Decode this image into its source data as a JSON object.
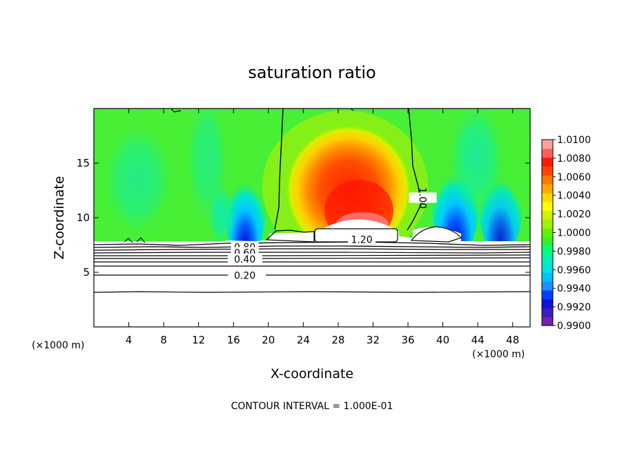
{
  "chart_data": {
    "type": "heatmap",
    "title": "saturation ratio",
    "xlabel": "X-coordinate",
    "ylabel": "Z-coordinate",
    "x_unit_left": "(×1000 m)",
    "x_unit_right": "(×1000 m)",
    "footer": "CONTOUR INTERVAL = 1.000E-01",
    "xlim": [
      0,
      50
    ],
    "ylim": [
      0,
      20
    ],
    "x_ticks": [
      4,
      8,
      12,
      16,
      20,
      24,
      28,
      32,
      36,
      40,
      44,
      48
    ],
    "y_ticks": [
      5,
      10,
      15
    ],
    "colorbar": {
      "min": 0.99,
      "max": 1.01,
      "step": 0.001,
      "labels": [
        "1.0100",
        "1.0080",
        "1.0060",
        "1.0040",
        "1.0020",
        "1.0000",
        "0.9980",
        "0.9960",
        "0.9940",
        "0.9920",
        "0.9900"
      ],
      "colors": [
        "#7a1fa8",
        "#3a1fc0",
        "#1010d8",
        "#0040ff",
        "#1e90ff",
        "#00bfff",
        "#00e0e0",
        "#00f0b0",
        "#00ff80",
        "#30f030",
        "#60f000",
        "#a0f000",
        "#d0f000",
        "#ffff00",
        "#ffd800",
        "#ffa800",
        "#ff7800",
        "#ff4500",
        "#ff1a00",
        "#ff6060",
        "#ffa0a0"
      ]
    },
    "contour_labels": [
      {
        "text": "1.00",
        "x": 37.7,
        "z": 11.8
      },
      {
        "text": "1.20",
        "x": 30.7,
        "z": 8.0
      },
      {
        "text": "0.80",
        "x": 17.3,
        "z": 7.3
      },
      {
        "text": "0.60",
        "x": 17.3,
        "z": 6.8
      },
      {
        "text": "0.40",
        "x": 17.3,
        "z": 6.2
      },
      {
        "text": "0.20",
        "x": 17.3,
        "z": 4.7
      }
    ]
  }
}
